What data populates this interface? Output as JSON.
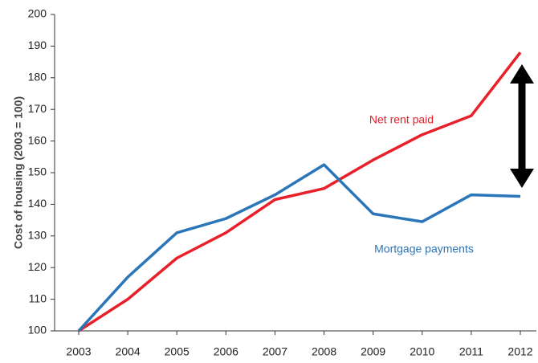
{
  "chart_data": {
    "type": "line",
    "y_label": "Cost of housing (2003 = 100)",
    "categories": [
      "2003",
      "2004",
      "2005",
      "2006",
      "2007",
      "2008",
      "2009",
      "2010",
      "2011",
      "2012"
    ],
    "series": [
      {
        "name": "Net rent paid",
        "color": "#e8202a",
        "values": [
          100,
          110,
          123,
          131,
          141.5,
          145,
          154,
          162,
          168,
          188
        ]
      },
      {
        "name": "Mortgage payments",
        "color": "#2b75b9",
        "values": [
          100,
          117,
          131,
          135.5,
          143,
          152.5,
          137,
          134.5,
          143,
          142.5
        ]
      }
    ],
    "ylim": [
      100,
      200
    ],
    "yticks": [
      100,
      110,
      120,
      130,
      140,
      150,
      160,
      170,
      180,
      190,
      200
    ],
    "grid": false
  }
}
